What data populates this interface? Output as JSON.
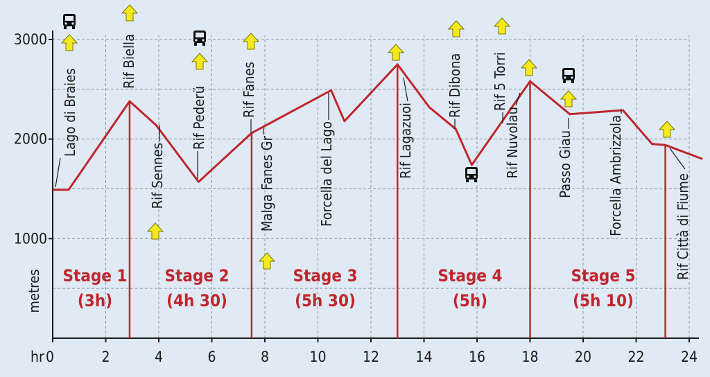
{
  "chart_data": {
    "type": "line",
    "ylabel": "metres",
    "xunit": "hr",
    "xlim": [
      0,
      24
    ],
    "ylim": [
      0,
      3000
    ],
    "xticks": [
      0,
      2,
      4,
      6,
      8,
      10,
      12,
      14,
      16,
      18,
      20,
      22,
      24
    ],
    "yticks": [
      1000,
      2000,
      3000
    ],
    "grid": true,
    "line_color": "#c0262d",
    "accent_color": "#f4ea1a",
    "series": [
      {
        "x": [
          0,
          0.6,
          2.9,
          3.9,
          5.5,
          7.5,
          10.5,
          11,
          13,
          14.2,
          15.2,
          15.8,
          18,
          19.5,
          21.5,
          22.6,
          23.1,
          24.5
        ],
        "y": [
          1490,
          1490,
          2380,
          2140,
          1570,
          2060,
          2490,
          2180,
          2750,
          2320,
          2100,
          1740,
          2580,
          2250,
          2290,
          1950,
          1940,
          1800
        ]
      }
    ],
    "places": [
      {
        "name": "Lago di Braies",
        "x": 0.6,
        "y": 1490,
        "icons": [
          "bus-icon",
          "arrow-up-icon"
        ]
      },
      {
        "name": "Rif Biella",
        "x": 2.9,
        "y": 2380,
        "icons": [
          "arrow-up-icon"
        ]
      },
      {
        "name": "Rif Sennes",
        "x": 3.9,
        "y": 2140,
        "icons": [
          "arrow-up-icon"
        ]
      },
      {
        "name": "Rif Pederü",
        "x": 5.5,
        "y": 1570,
        "icons": [
          "bus-icon",
          "arrow-up-icon"
        ]
      },
      {
        "name": "Rif Fanes",
        "x": 7.5,
        "y": 2060,
        "icons": [
          "arrow-up-icon"
        ]
      },
      {
        "name": "Malga Fanes Gr",
        "x": 8.1,
        "y": 2120,
        "icons": [
          "arrow-up-icon"
        ]
      },
      {
        "name": "Forcella del Lago",
        "x": 10.5,
        "y": 2490,
        "icons": []
      },
      {
        "name": "Rif Lagazuoi",
        "x": 13,
        "y": 2750,
        "icons": [
          "arrow-up-icon"
        ]
      },
      {
        "name": "Rif Dibona",
        "x": 15.2,
        "y": 2100,
        "icons": [
          "arrow-up-icon"
        ]
      },
      {
        "name": "Rif 5 Torri",
        "x": 16.9,
        "y": 2180,
        "icons": [
          "arrow-up-icon"
        ]
      },
      {
        "name": "Rif Nuvolau",
        "x": 18,
        "y": 2580,
        "icons": [
          "arrow-up-icon"
        ]
      },
      {
        "name": "Passo Giau",
        "x": 19.5,
        "y": 2250,
        "icons": [
          "bus-icon",
          "arrow-up-icon"
        ]
      },
      {
        "name": "Forcella Ambrizzola",
        "x": 21.5,
        "y": 2290,
        "icons": []
      },
      {
        "name": "Rif Città di Fiume",
        "x": 23.1,
        "y": 1940,
        "icons": [
          "arrow-up-icon"
        ]
      },
      {
        "name": "",
        "x": 15.8,
        "y": 1740,
        "icons": [
          "bus-icon"
        ]
      }
    ],
    "stages": [
      {
        "label": "Stage 1",
        "time": "(3h)"
      },
      {
        "label": "Stage 2",
        "time": "(4h 30)"
      },
      {
        "label": "Stage 3",
        "time": "(5h 30)"
      },
      {
        "label": "Stage 4",
        "time": "(5h)"
      },
      {
        "label": "Stage 5",
        "time": "(5h 10)"
      }
    ],
    "stage_boundaries": [
      2.9,
      7.5,
      13,
      18,
      23.1
    ]
  }
}
